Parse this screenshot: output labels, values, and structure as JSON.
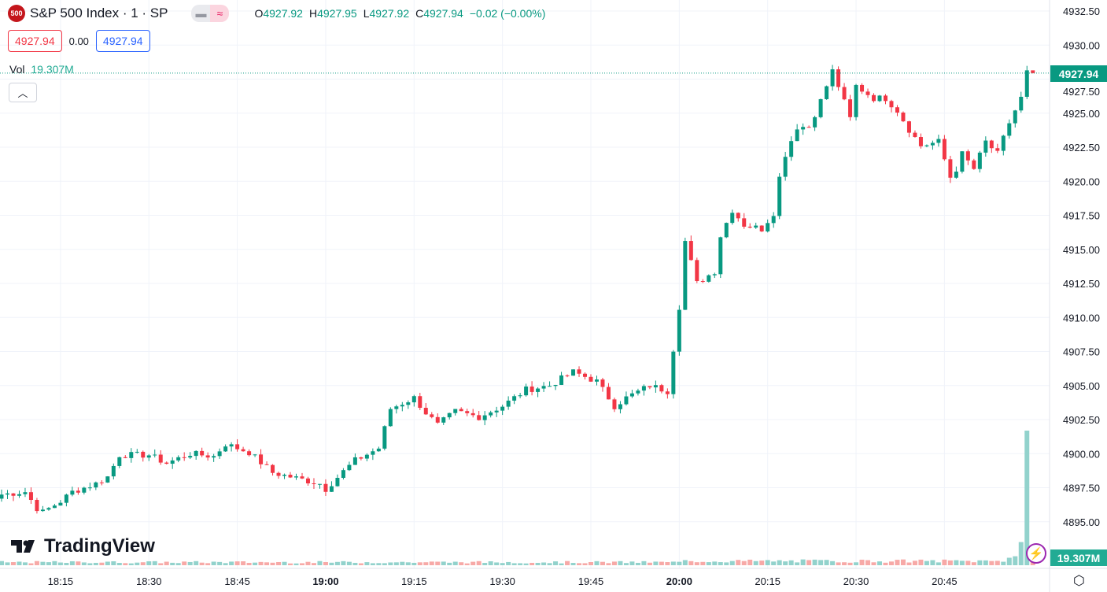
{
  "header": {
    "logo_text": "500",
    "title": "S&P 500 Index · 1 · SP",
    "O": "4927.92",
    "H": "4927.95",
    "L": "4927.92",
    "C": "4927.94",
    "change": "−0.02 (−0.00%)",
    "sell": "4927.94",
    "spread": "0.00",
    "buy": "4927.94"
  },
  "volume_label": {
    "label": "Vol",
    "value": "19.307M"
  },
  "brand": "TradingView",
  "price_tag": "4927.94",
  "volume_tag": "19.307M",
  "colors": {
    "up": "#089981",
    "down": "#f23645",
    "up_vol": "#92d2cc",
    "down_vol": "#f7a9a7"
  },
  "chart_data": {
    "type": "candlestick",
    "symbol": "S&P 500 Index",
    "interval_minutes": 1,
    "start_time": "18:05",
    "ylim": [
      4893.5,
      4933.5
    ],
    "y_ticks": [
      "4895.00",
      "4897.50",
      "4900.00",
      "4902.50",
      "4905.00",
      "4907.50",
      "4910.00",
      "4912.50",
      "4915.00",
      "4917.50",
      "4920.00",
      "4922.50",
      "4925.00",
      "4927.50",
      "4930.00",
      "4932.50"
    ],
    "x_ticks": [
      {
        "label": "18:15",
        "minute": 10
      },
      {
        "label": "18:30",
        "minute": 25
      },
      {
        "label": "18:45",
        "minute": 40
      },
      {
        "label": "19:00",
        "minute": 55,
        "bold": true
      },
      {
        "label": "19:15",
        "minute": 70
      },
      {
        "label": "19:30",
        "minute": 85
      },
      {
        "label": "19:45",
        "minute": 100
      },
      {
        "label": "20:00",
        "minute": 115,
        "bold": true
      },
      {
        "label": "20:15",
        "minute": 130
      },
      {
        "label": "20:30",
        "minute": 145
      },
      {
        "label": "20:45",
        "minute": 160
      }
    ],
    "close_keypoints": [
      [
        0,
        4897.0
      ],
      [
        4,
        4897.2
      ],
      [
        6,
        4896.0
      ],
      [
        7,
        4895.7
      ],
      [
        10,
        4896.5
      ],
      [
        12,
        4897.2
      ],
      [
        16,
        4897.8
      ],
      [
        18,
        4898.3
      ],
      [
        20,
        4899.9
      ],
      [
        25,
        4899.9
      ],
      [
        28,
        4899.3
      ],
      [
        32,
        4900.0
      ],
      [
        36,
        4899.8
      ],
      [
        38,
        4900.7
      ],
      [
        42,
        4900.1
      ],
      [
        46,
        4898.6
      ],
      [
        49,
        4898.3
      ],
      [
        54,
        4897.8
      ],
      [
        55,
        4897.4
      ],
      [
        58,
        4898.7
      ],
      [
        60,
        4899.5
      ],
      [
        64,
        4900.4
      ],
      [
        66,
        4903.3
      ],
      [
        70,
        4904.1
      ],
      [
        72,
        4903.0
      ],
      [
        74,
        4902.1
      ],
      [
        77,
        4903.1
      ],
      [
        81,
        4902.7
      ],
      [
        85,
        4903.5
      ],
      [
        89,
        4904.7
      ],
      [
        93,
        4905.0
      ],
      [
        97,
        4906.0
      ],
      [
        101,
        4905.3
      ],
      [
        104,
        4903.5
      ],
      [
        106,
        4904.1
      ],
      [
        110,
        4905.0
      ],
      [
        113,
        4904.6
      ],
      [
        115,
        4910.8
      ],
      [
        116,
        4915.6
      ],
      [
        118,
        4912.5
      ],
      [
        121,
        4913.4
      ],
      [
        122,
        4916.0
      ],
      [
        124,
        4917.9
      ],
      [
        126,
        4916.8
      ],
      [
        129,
        4916.5
      ],
      [
        131,
        4917.7
      ],
      [
        131.5,
        4919.4
      ],
      [
        133,
        4922.0
      ],
      [
        135,
        4924.0
      ],
      [
        137,
        4924.0
      ],
      [
        139,
        4925.9
      ],
      [
        141,
        4928.1
      ],
      [
        142,
        4927.0
      ],
      [
        144,
        4924.6
      ],
      [
        145,
        4927.0
      ],
      [
        148,
        4926.1
      ],
      [
        150,
        4926.1
      ],
      [
        152,
        4925.2
      ],
      [
        154,
        4923.8
      ],
      [
        156,
        4922.6
      ],
      [
        159,
        4922.9
      ],
      [
        161,
        4920.3
      ],
      [
        162,
        4920.9
      ],
      [
        163,
        4922.0
      ],
      [
        165,
        4920.9
      ],
      [
        167,
        4922.9
      ],
      [
        169,
        4922.0
      ],
      [
        171,
        4924.3
      ],
      [
        173,
        4926.1
      ],
      [
        174,
        4928.0
      ],
      [
        175,
        4927.94
      ]
    ],
    "final_candle": {
      "open": 4927.92,
      "high": 4927.95,
      "low": 4927.92,
      "close": 4927.94,
      "volume_m": 19.307
    },
    "volume_m_typical": 4,
    "volume_m_last": [
      [
        171,
        10
      ],
      [
        172,
        12
      ],
      [
        173,
        31
      ],
      [
        174,
        180
      ],
      [
        175,
        19.307
      ]
    ]
  }
}
